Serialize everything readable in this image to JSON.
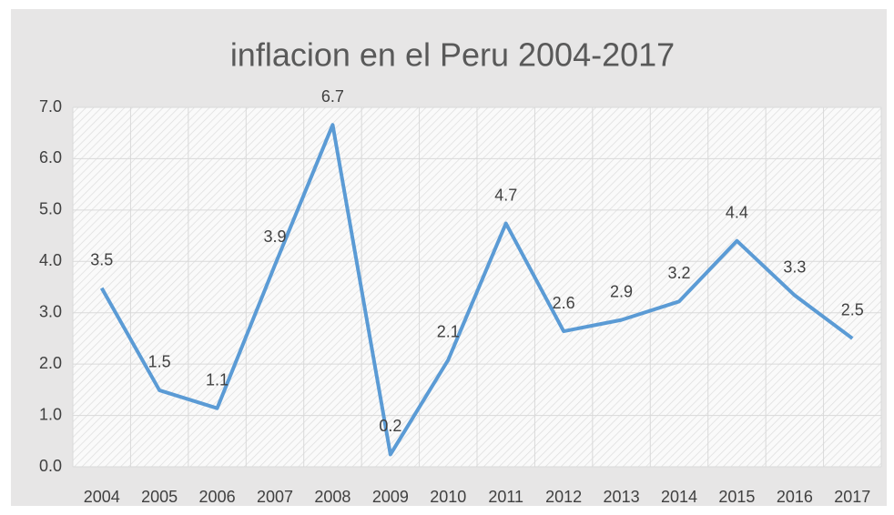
{
  "chart_data": {
    "type": "line",
    "title": "inflacion en el Peru 2004-2017",
    "categories": [
      "2004",
      "2005",
      "2006",
      "2007",
      "2008",
      "2009",
      "2010",
      "2011",
      "2012",
      "2013",
      "2014",
      "2015",
      "2016",
      "2017"
    ],
    "series": [
      {
        "name": "inflacion",
        "color": "#5b9bd5",
        "values": [
          3.48,
          1.49,
          1.14,
          3.93,
          6.66,
          0.24,
          2.08,
          4.74,
          2.64,
          2.86,
          3.22,
          4.4,
          3.34,
          2.5
        ],
        "value_labels": [
          "3.5",
          "1.5",
          "1.1",
          "3.9",
          "6.7",
          "0.2",
          "2.1",
          "4.7",
          "2.6",
          "2.9",
          "3.2",
          "4.4",
          "3.3",
          "2.5"
        ]
      }
    ],
    "ylim": [
      0,
      7
    ],
    "yticks": [
      {
        "value": 0,
        "label": "0.0"
      },
      {
        "value": 1,
        "label": "1.0"
      },
      {
        "value": 2,
        "label": "2.0"
      },
      {
        "value": 3,
        "label": "3.0"
      },
      {
        "value": 4,
        "label": "4.0"
      },
      {
        "value": 5,
        "label": "5.0"
      },
      {
        "value": 6,
        "label": "6.0"
      },
      {
        "value": 7,
        "label": "7.0"
      }
    ],
    "grid": true
  }
}
